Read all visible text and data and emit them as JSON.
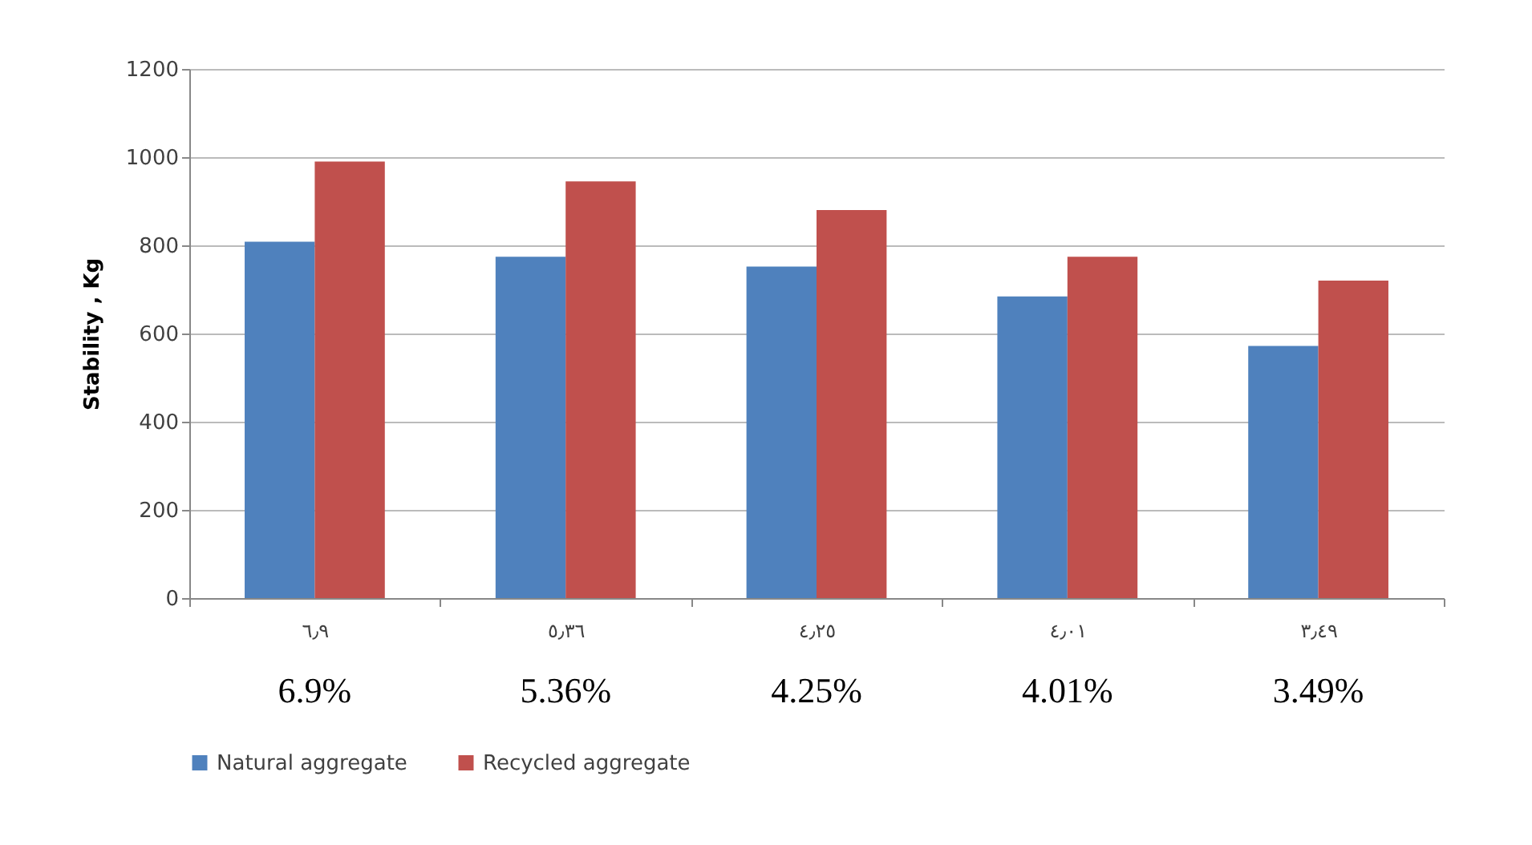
{
  "chart_data": {
    "type": "bar",
    "ylabel": "Stability , Kg",
    "categories": [
      "٦٫٩",
      "٥٫٣٦",
      "٤٫٢٥",
      "٤٫٠١",
      "٣٫٤٩"
    ],
    "series": [
      {
        "name": "Natural aggregate",
        "color": "#4f81bd",
        "values": [
          808,
          774,
          752,
          684,
          572
        ]
      },
      {
        "name": "Recycled aggregate",
        "color": "#c0504d",
        "values": [
          990,
          945,
          880,
          774,
          720
        ]
      }
    ],
    "annotations": [
      "6.9%",
      "5.36%",
      "4.25%",
      "4.01%",
      "3.49%"
    ],
    "ylim": [
      0,
      1200
    ],
    "yticks": [
      0,
      200,
      400,
      600,
      800,
      1000,
      1200
    ],
    "grid": "y",
    "legend": "bottom"
  }
}
